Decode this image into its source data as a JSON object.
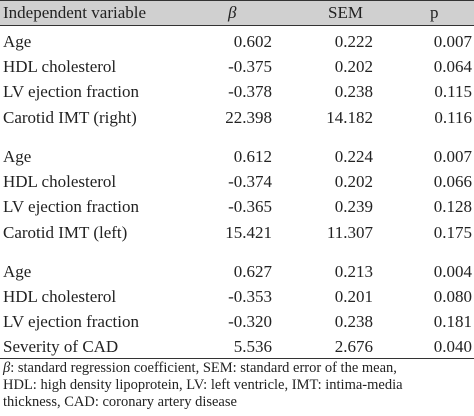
{
  "header": {
    "variable": "Independent variable",
    "beta": "β",
    "sem": "SEM",
    "p": "p"
  },
  "rows": [
    {
      "variable": "Age",
      "beta": "0.602",
      "sem": "0.222",
      "p": "0.007"
    },
    {
      "variable": "HDL cholesterol",
      "beta": "-0.375",
      "sem": "0.202",
      "p": "0.064"
    },
    {
      "variable": "LV ejection fraction",
      "beta": "-0.378",
      "sem": "0.238",
      "p": "0.115"
    },
    {
      "variable": "Carotid IMT (right)",
      "beta": "22.398",
      "sem": "14.182",
      "p": "0.116"
    },
    {
      "variable": "Age",
      "beta": "0.612",
      "sem": "0.224",
      "p": "0.007"
    },
    {
      "variable": "HDL cholesterol",
      "beta": "-0.374",
      "sem": "0.202",
      "p": "0.066"
    },
    {
      "variable": "LV ejection fraction",
      "beta": "-0.365",
      "sem": "0.239",
      "p": "0.128"
    },
    {
      "variable": "Carotid IMT (left)",
      "beta": "15.421",
      "sem": "11.307",
      "p": "0.175"
    },
    {
      "variable": "Age",
      "beta": "0.627",
      "sem": "0.213",
      "p": "0.004"
    },
    {
      "variable": "HDL cholesterol",
      "beta": "-0.353",
      "sem": "0.201",
      "p": "0.080"
    },
    {
      "variable": "LV ejection fraction",
      "beta": "-0.320",
      "sem": "0.238",
      "p": "0.181"
    },
    {
      "variable": "Severity of CAD",
      "beta": "5.536",
      "sem": "2.676",
      "p": "0.040"
    }
  ],
  "footnote": {
    "beta_symbol": "β",
    "line1": ": standard regression coefficient, SEM: standard error of the mean,",
    "line2": "HDL: high density lipoprotein, LV: left ventricle, IMT: intima-media",
    "line3": "thickness, CAD: coronary artery disease"
  }
}
